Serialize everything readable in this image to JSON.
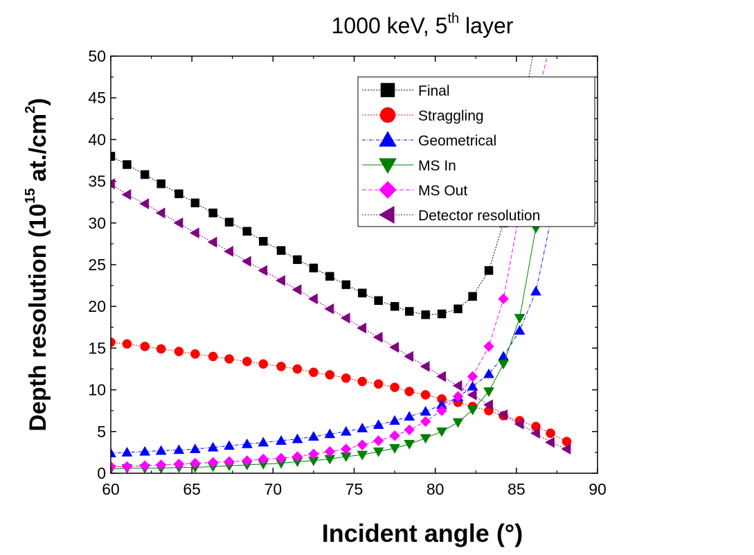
{
  "chart_data": {
    "type": "line",
    "title": "1000 keV, 5",
    "title_sup": "th",
    "title_suffix": " layer",
    "xlabel": "Incident angle (°)",
    "ylabel": "Depth resolution (10",
    "ylabel_sup1": "15",
    "ylabel_mid": " at./cm",
    "ylabel_sup2": "2",
    "ylabel_end": ")",
    "xlim": [
      60,
      90
    ],
    "ylim": [
      0,
      50
    ],
    "xticks": [
      60,
      65,
      70,
      75,
      80,
      85,
      90
    ],
    "yticks": [
      0,
      5,
      10,
      15,
      20,
      25,
      30,
      35,
      40,
      45,
      50
    ],
    "grid": false,
    "legend_position": "top-right",
    "x": [
      60,
      61.0,
      62.1,
      63.1,
      64.2,
      65.2,
      66.3,
      67.3,
      68.4,
      69.4,
      70.5,
      71.5,
      72.5,
      73.5,
      74.5,
      75.5,
      76.5,
      77.5,
      78.4,
      79.4,
      80.4,
      81.4,
      82.3,
      83.3,
      84.2,
      85.2,
      86.2,
      87.1,
      88.1
    ],
    "series": [
      {
        "name": "Final",
        "color": "#000000",
        "marker": "square",
        "line": "dotted",
        "values": [
          38.0,
          37.0,
          35.8,
          34.7,
          33.5,
          32.4,
          31.2,
          30.1,
          29.0,
          27.8,
          26.7,
          25.6,
          24.6,
          23.6,
          22.6,
          21.6,
          20.7,
          20.0,
          19.4,
          19.0,
          19.1,
          19.7,
          21.2,
          24.3,
          30.0,
          41.1,
          null,
          null,
          null
        ],
        "extension": [
          [
            86.0,
            50
          ],
          [
            86.4,
            60
          ]
        ]
      },
      {
        "name": "Straggling",
        "color": "#ff0000",
        "marker": "circle",
        "line": "dotted",
        "values": [
          15.7,
          15.5,
          15.2,
          14.9,
          14.6,
          14.3,
          14.0,
          13.7,
          13.4,
          13.1,
          12.8,
          12.5,
          12.1,
          11.8,
          11.4,
          11.0,
          10.7,
          10.3,
          9.8,
          9.4,
          8.9,
          8.5,
          8.0,
          7.5,
          6.9,
          6.3,
          5.6,
          4.8,
          3.8
        ]
      },
      {
        "name": "Geometrical",
        "color": "#0000ff",
        "marker": "triangle-up",
        "line": "dash-dot",
        "values": [
          2.4,
          2.5,
          2.6,
          2.7,
          2.8,
          2.9,
          3.1,
          3.3,
          3.5,
          3.7,
          3.9,
          4.1,
          4.4,
          4.7,
          5.0,
          5.4,
          5.8,
          6.3,
          6.8,
          7.4,
          8.2,
          9.1,
          10.4,
          11.9,
          14.0,
          17.1,
          21.8,
          30.1,
          46.9
        ]
      },
      {
        "name": "MS In",
        "color": "#008000",
        "marker": "triangle-down",
        "line": "solid",
        "values": [
          0.5,
          0.6,
          0.6,
          0.6,
          0.7,
          0.7,
          0.8,
          0.9,
          1.0,
          1.1,
          1.2,
          1.4,
          1.5,
          1.7,
          2.0,
          2.2,
          2.6,
          3.0,
          3.5,
          4.2,
          5.0,
          6.1,
          7.6,
          9.8,
          13.1,
          18.6,
          29.4,
          39.0,
          46.3
        ]
      },
      {
        "name": "MS Out",
        "color": "#ff00ff",
        "marker": "diamond",
        "line": "dashed",
        "values": [
          0.8,
          0.8,
          0.9,
          1.0,
          1.1,
          1.2,
          1.3,
          1.4,
          1.5,
          1.7,
          1.8,
          2.0,
          2.3,
          2.6,
          2.9,
          3.4,
          3.9,
          4.5,
          5.2,
          6.2,
          7.5,
          9.2,
          11.6,
          15.2,
          20.9,
          31.3,
          44.3,
          null,
          null
        ],
        "extension": [
          [
            86.9,
            50
          ],
          [
            87.3,
            60
          ]
        ]
      },
      {
        "name": "Detector resolution",
        "color": "#800080",
        "marker": "triangle-left",
        "line": "dotted",
        "values": [
          34.7,
          33.4,
          32.3,
          31.2,
          30.0,
          28.8,
          27.7,
          26.6,
          25.4,
          24.3,
          23.1,
          22.0,
          20.9,
          19.7,
          18.6,
          17.4,
          16.3,
          15.1,
          14.0,
          12.8,
          11.6,
          10.5,
          9.4,
          8.2,
          7.0,
          5.9,
          4.8,
          3.7,
          2.9
        ]
      }
    ]
  }
}
